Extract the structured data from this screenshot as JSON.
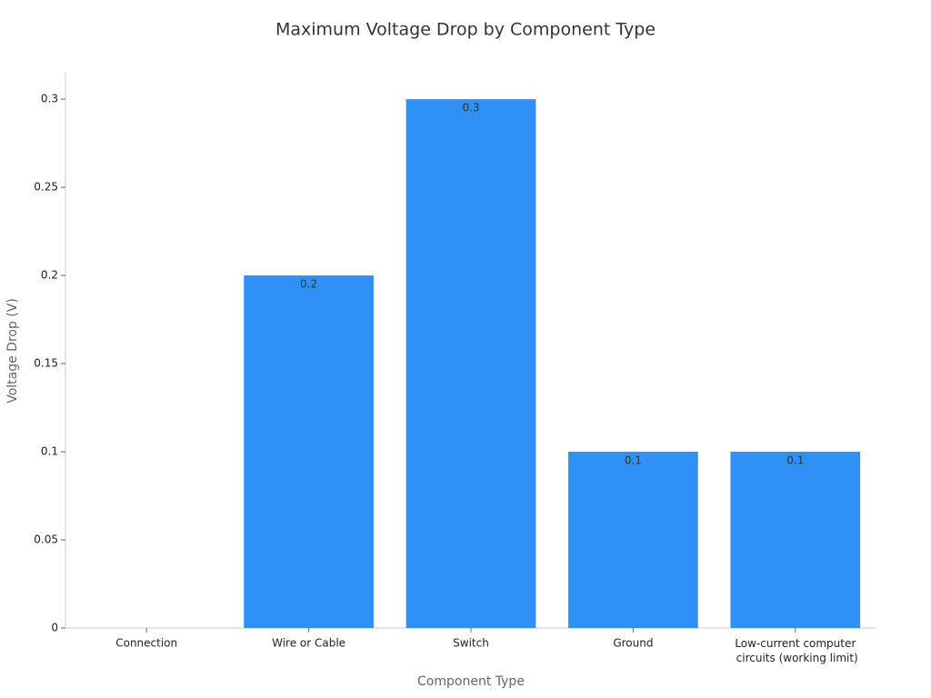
{
  "chart_data": {
    "type": "bar",
    "title": "Maximum Voltage Drop by Component Type",
    "x_label": "Component Type",
    "y_label": "Voltage Drop (V)",
    "categories": [
      "Connection",
      "Wire or Cable",
      "Switch",
      "Ground",
      "Low-current computer circuits (working limit)"
    ],
    "values": [
      0,
      0.2,
      0.3,
      0.1,
      0.1
    ],
    "value_labels": [
      null,
      "0.2",
      "0.3",
      "0.1",
      "0.1"
    ],
    "color": "#2f91f8",
    "ylim": [
      0,
      0.315
    ],
    "yticks": [
      0,
      0.05,
      0.1,
      0.15,
      0.2,
      0.25,
      0.3
    ],
    "grid": false
  }
}
